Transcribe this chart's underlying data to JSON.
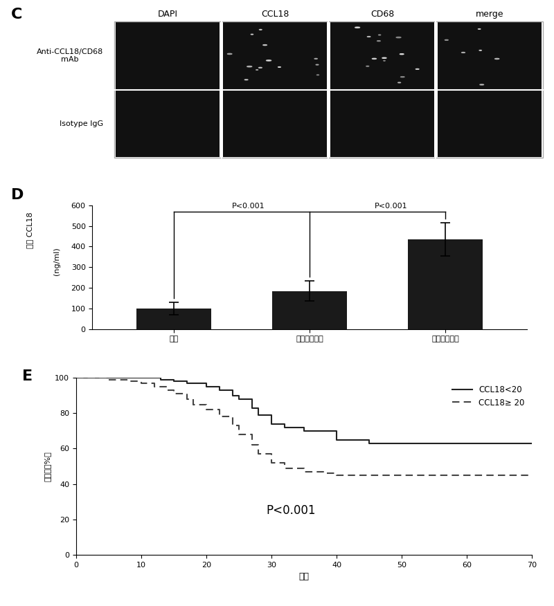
{
  "panel_C": {
    "label": "C",
    "col_labels": [
      "DAPI",
      "CCL18",
      "CD68",
      "merge"
    ],
    "row_labels": [
      "Anti-CCL18/CD68\nmAb",
      "Isotype IgG"
    ],
    "n_rows": 2,
    "n_cols": 4
  },
  "panel_D": {
    "label": "D",
    "categories": [
      "良性",
      "原位的乳腺癌",
      "转移性乳腺癌"
    ],
    "values": [
      100,
      185,
      435
    ],
    "errors": [
      30,
      50,
      80
    ],
    "bar_color": "#1a1a1a",
    "ylabel_top": "血清 CCL18",
    "ylabel_bottom": "(ng/ml)",
    "ylim": [
      0,
      600
    ],
    "yticks": [
      0,
      100,
      200,
      300,
      400,
      500,
      600
    ]
  },
  "panel_E": {
    "label": "E",
    "xlabel": "月数",
    "ylabel": "存活率（%）",
    "xlim": [
      0,
      70
    ],
    "ylim": [
      0,
      100
    ],
    "xticks": [
      0,
      10,
      20,
      30,
      40,
      50,
      60,
      70
    ],
    "yticks": [
      0,
      20,
      40,
      60,
      80,
      100
    ],
    "pvalue_text": "P<0.001",
    "pvalue_x": 33,
    "pvalue_y": 25,
    "legend_entries": [
      "CCL18<20",
      "CCL18≥ 20"
    ],
    "line1_color": "#222222",
    "line2_color": "#444444",
    "curve1_x": [
      0,
      1,
      5,
      10,
      13,
      15,
      17,
      20,
      22,
      24,
      25,
      27,
      28,
      30,
      32,
      35,
      40,
      45,
      50,
      55,
      60,
      65,
      70
    ],
    "curve1_y": [
      100,
      100,
      100,
      100,
      99,
      98,
      97,
      95,
      93,
      90,
      88,
      83,
      79,
      74,
      72,
      70,
      65,
      63,
      63,
      63,
      63,
      63,
      63
    ],
    "curve2_x": [
      0,
      1,
      5,
      8,
      10,
      12,
      14,
      15,
      17,
      18,
      20,
      22,
      24,
      25,
      27,
      28,
      30,
      32,
      35,
      38,
      40,
      45,
      50,
      55,
      60,
      65,
      70
    ],
    "curve2_y": [
      100,
      100,
      99,
      98,
      97,
      95,
      93,
      91,
      88,
      85,
      82,
      78,
      73,
      68,
      62,
      57,
      52,
      49,
      47,
      46,
      45,
      45,
      45,
      45,
      45,
      45,
      45
    ]
  },
  "figure_bg": "#ffffff"
}
